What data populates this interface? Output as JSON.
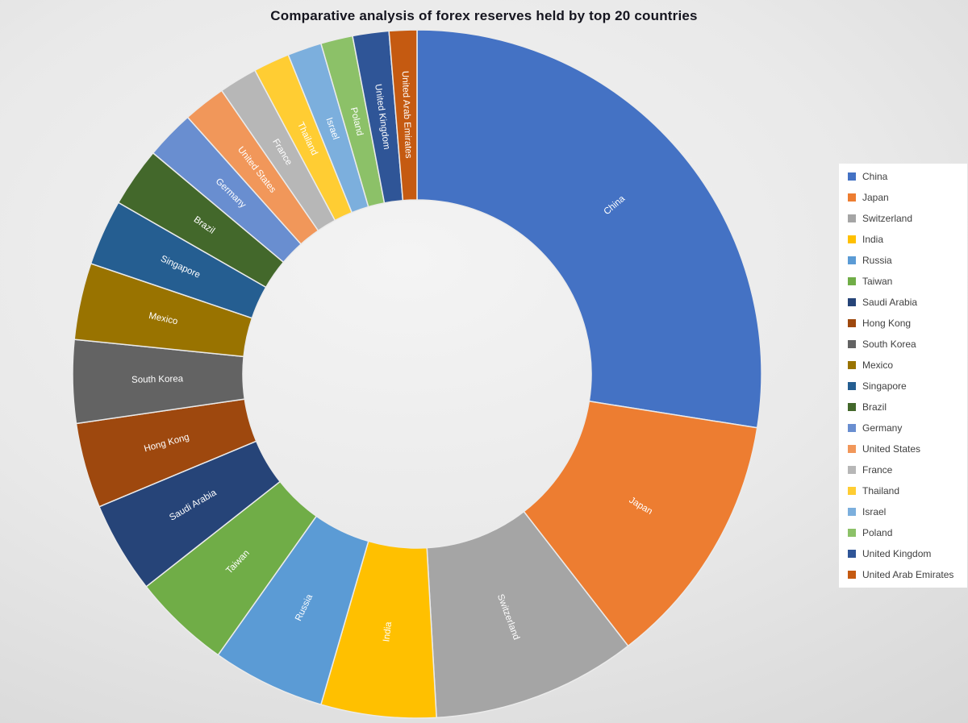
{
  "chart_data": {
    "type": "pie",
    "subtype": "donut",
    "title": "Comparative analysis of forex reserves held by top 20 countries",
    "legend_position": "right",
    "direction": "clockwise",
    "start_angle_deg": 0,
    "donut_hole_ratio": 0.505,
    "unit": "percent of top-20 total (estimated from slice angles; no numeric labels shown in chart)",
    "categories": [
      "China",
      "Japan",
      "Switzerland",
      "India",
      "Russia",
      "Taiwan",
      "Saudi Arabia",
      "Hong Kong",
      "South Korea",
      "Mexico",
      "Singapore",
      "Brazil",
      "Germany",
      "United States",
      "France",
      "Thailand",
      "Israel",
      "Poland",
      "United Kingdom",
      "United Arab Emirates"
    ],
    "values": [
      27.5,
      12.0,
      9.6,
      5.4,
      5.3,
      4.6,
      4.3,
      4.0,
      3.9,
      3.6,
      3.1,
      2.8,
      2.3,
      2.0,
      1.8,
      1.7,
      1.6,
      1.5,
      1.7,
      1.3
    ],
    "colors": [
      "#4472C4",
      "#ED7D31",
      "#A5A5A5",
      "#FFC000",
      "#5B9BD5",
      "#70AD47",
      "#264478",
      "#9E480E",
      "#636363",
      "#997300",
      "#255E91",
      "#43682B",
      "#698ED0",
      "#F1975A",
      "#B7B7B7",
      "#FFCD33",
      "#7CAFDD",
      "#8CC168",
      "#2F5597",
      "#C55A11"
    ],
    "slice_label_color": "#ffffff",
    "background_color": "#e4e4e4",
    "title_color": "#15151f"
  }
}
